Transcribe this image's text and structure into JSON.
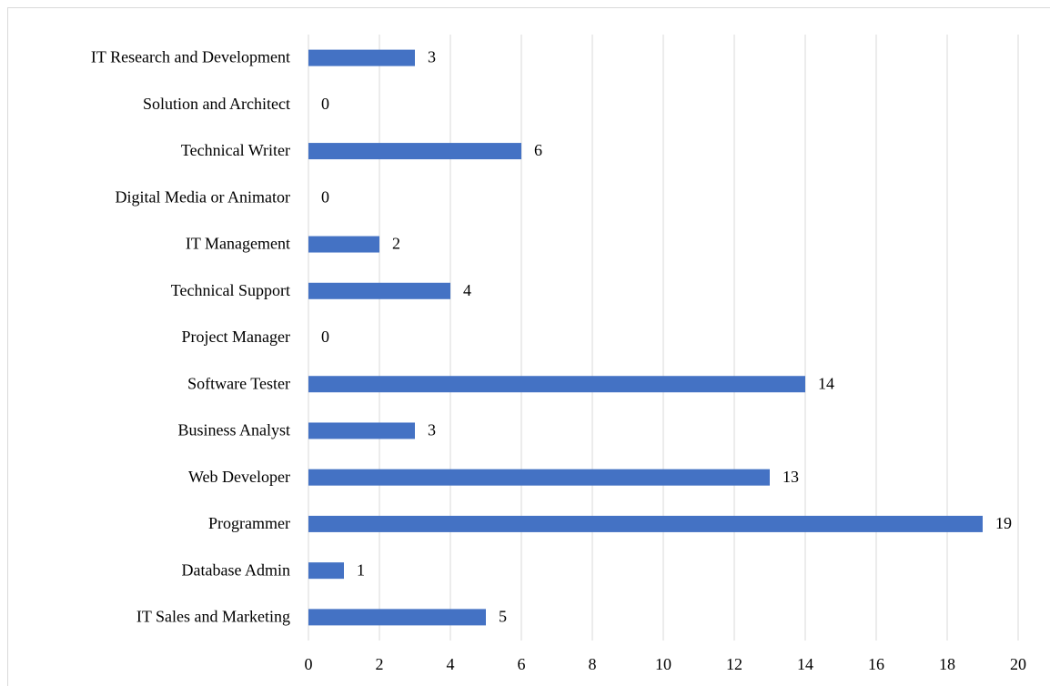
{
  "chart_data": {
    "type": "bar",
    "orientation": "horizontal",
    "categories": [
      "IT Research and Development",
      "Solution and Architect",
      "Technical Writer",
      "Digital Media or Animator",
      "IT Management",
      "Technical Support",
      "Project Manager",
      "Software Tester",
      "Business Analyst",
      "Web Developer",
      "Programmer",
      "Database Admin",
      "IT Sales and Marketing"
    ],
    "values": [
      3,
      0,
      6,
      0,
      2,
      4,
      0,
      14,
      3,
      13,
      19,
      1,
      5
    ],
    "color": "#4472c4",
    "xlim": [
      0,
      20
    ],
    "xticks": [
      0,
      2,
      4,
      6,
      8,
      10,
      12,
      14,
      16,
      18,
      20
    ],
    "grid": true
  }
}
